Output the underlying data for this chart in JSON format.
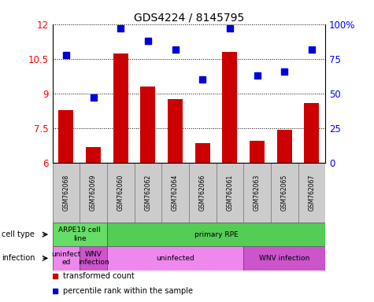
{
  "title": "GDS4224 / 8145795",
  "samples": [
    "GSM762068",
    "GSM762069",
    "GSM762060",
    "GSM762062",
    "GSM762064",
    "GSM762066",
    "GSM762061",
    "GSM762063",
    "GSM762065",
    "GSM762067"
  ],
  "transformed_count": [
    8.3,
    6.7,
    10.75,
    9.3,
    8.75,
    6.85,
    10.8,
    6.95,
    7.45,
    8.6
  ],
  "percentile_rank": [
    78,
    47,
    97,
    88,
    82,
    60,
    97,
    63,
    66,
    82
  ],
  "ylim_left": [
    6,
    12
  ],
  "ylim_right": [
    0,
    100
  ],
  "yticks_left": [
    6,
    7.5,
    9,
    10.5,
    12
  ],
  "yticks_right": [
    0,
    25,
    50,
    75,
    100
  ],
  "ytick_labels_right": [
    "0",
    "25",
    "50",
    "75",
    "100%"
  ],
  "bar_color": "#cc0000",
  "dot_color": "#0000dd",
  "grid_color": "#000000",
  "sample_bg_color": "#cccccc",
  "cell_type_groups": [
    {
      "label": "ARPE19 cell\nline",
      "start": 0,
      "end": 2,
      "color": "#66dd66"
    },
    {
      "label": "primary RPE",
      "start": 2,
      "end": 10,
      "color": "#55cc55"
    }
  ],
  "infection_groups": [
    {
      "label": "uninfect\ned",
      "start": 0,
      "end": 1,
      "color": "#ee88ee"
    },
    {
      "label": "WNV\ninfection",
      "start": 1,
      "end": 2,
      "color": "#cc55cc"
    },
    {
      "label": "uninfected",
      "start": 2,
      "end": 7,
      "color": "#ee88ee"
    },
    {
      "label": "WNV infection",
      "start": 7,
      "end": 10,
      "color": "#cc55cc"
    }
  ],
  "annot_cell_type": "cell type",
  "annot_infection": "infection",
  "legend_items": [
    {
      "label": "transformed count",
      "color": "#cc0000"
    },
    {
      "label": "percentile rank within the sample",
      "color": "#0000dd"
    }
  ],
  "bg_color": "#ffffff"
}
